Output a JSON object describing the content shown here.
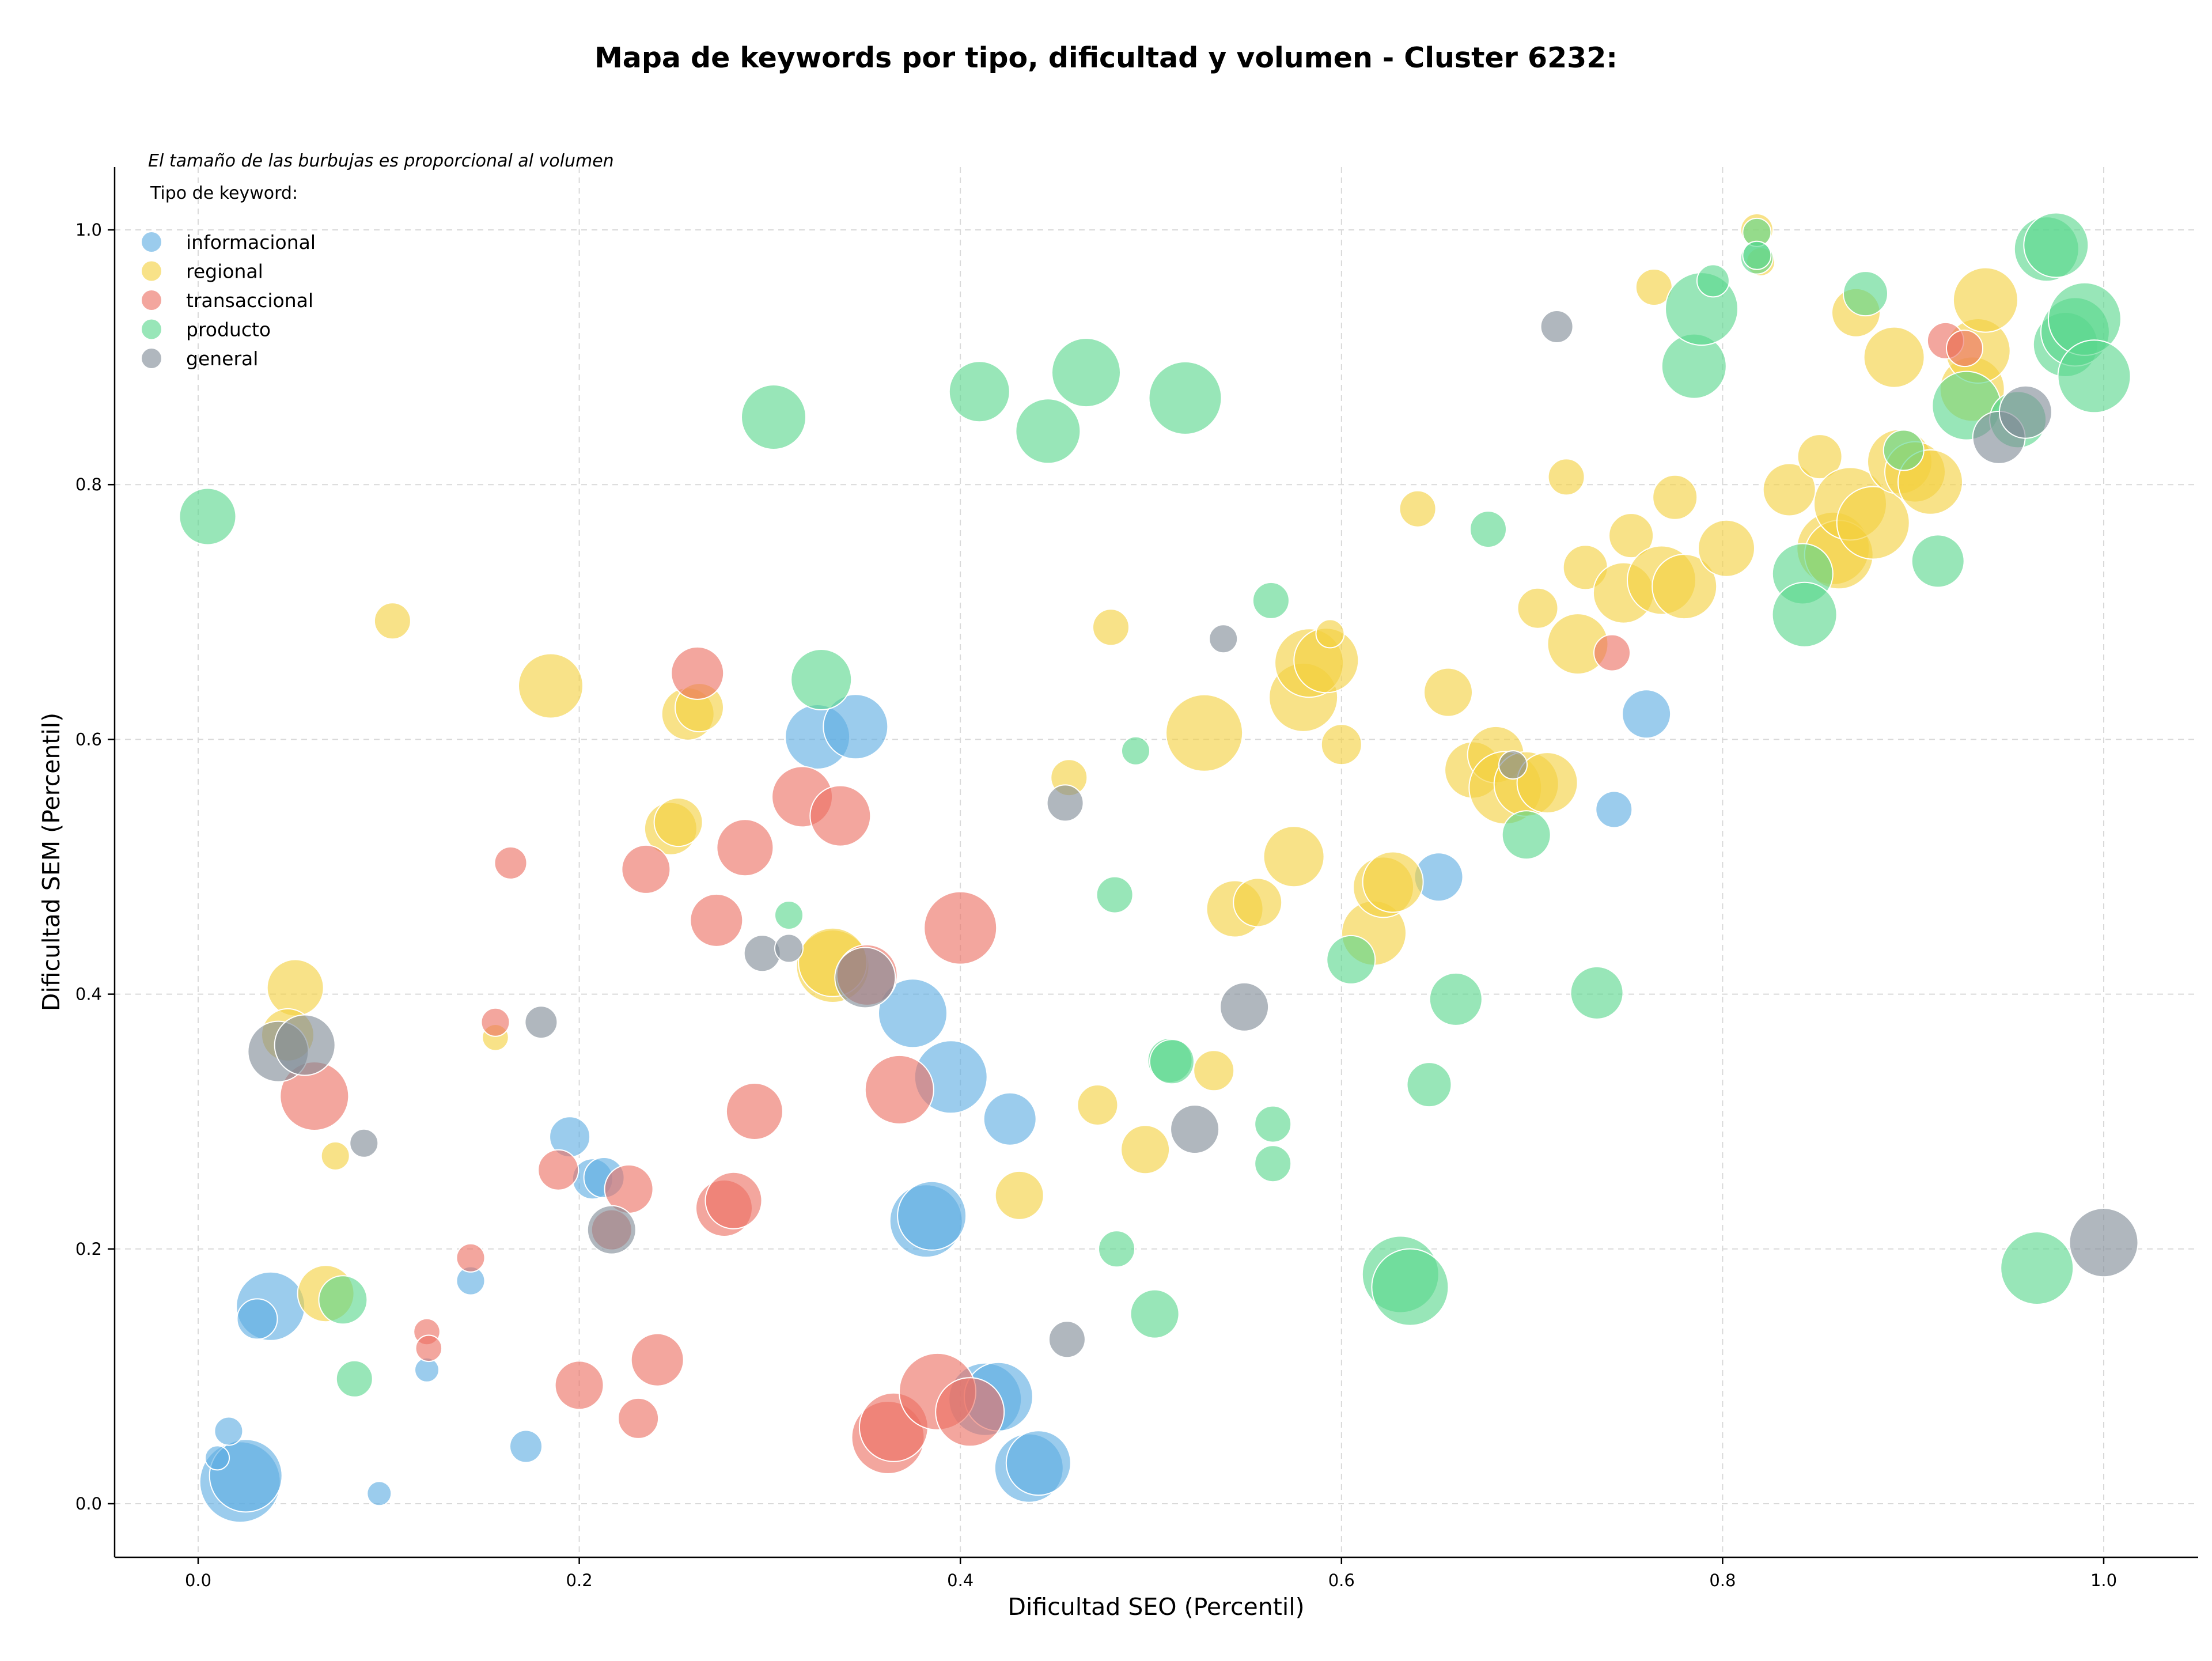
{
  "chart_data": {
    "type": "scatter",
    "title": "Mapa de keywords por tipo, dificultad y volumen - Cluster 6232:",
    "xlabel": "Dificultad SEO (Percentil)",
    "ylabel": "Dificultad SEM (Percentil)",
    "xlim": [
      -0.045,
      1.05
    ],
    "ylim": [
      -0.04,
      1.05
    ],
    "x_ticks": [
      "0.0",
      "0.2",
      "0.4",
      "0.6",
      "0.8",
      "1.0"
    ],
    "y_ticks": [
      "0.0",
      "0.2",
      "0.4",
      "0.6",
      "0.8",
      "1.0"
    ],
    "x_tick_values": [
      0,
      0.2,
      0.4,
      0.6,
      0.8,
      1.0
    ],
    "y_tick_values": [
      0,
      0.2,
      0.4,
      0.6,
      0.8,
      1.0
    ],
    "grid": true,
    "legend_placement": "top-left",
    "size_note": "El tamaño de las burbujas es proporcional al volumen",
    "legend_title": "Tipo de keyword:",
    "series": [
      {
        "name": "informacional",
        "color": "#5dade2",
        "points": [
          [
            0.022,
            0.017,
            4
          ],
          [
            0.025,
            0.022,
            3.6
          ],
          [
            0.038,
            0.155,
            3.4
          ],
          [
            0.031,
            0.145,
            2
          ],
          [
            0.016,
            0.057,
            1.4
          ],
          [
            0.01,
            0.036,
            1.2
          ],
          [
            0.095,
            0.008,
            1.2
          ],
          [
            0.12,
            0.105,
            1.2
          ],
          [
            0.143,
            0.175,
            1.4
          ],
          [
            0.172,
            0.045,
            1.6
          ],
          [
            0.195,
            0.288,
            2
          ],
          [
            0.207,
            0.255,
            2
          ],
          [
            0.213,
            0.256,
            2
          ],
          [
            0.325,
            0.602,
            3.2
          ],
          [
            0.345,
            0.61,
            3.2
          ],
          [
            0.375,
            0.385,
            3.4
          ],
          [
            0.395,
            0.335,
            3.6
          ],
          [
            0.382,
            0.222,
            3.6
          ],
          [
            0.385,
            0.226,
            3.4
          ],
          [
            0.426,
            0.302,
            2.6
          ],
          [
            0.413,
            0.082,
            3.6
          ],
          [
            0.42,
            0.084,
            3.4
          ],
          [
            0.436,
            0.028,
            3.4
          ],
          [
            0.441,
            0.032,
            3.2
          ],
          [
            0.651,
            0.492,
            2.4
          ],
          [
            0.743,
            0.545,
            1.8
          ],
          [
            0.76,
            0.62,
            2.4
          ]
        ]
      },
      {
        "name": "regional",
        "color": "#f4d03f",
        "points": [
          [
            0.051,
            0.405,
            2.8
          ],
          [
            0.047,
            0.368,
            2.6
          ],
          [
            0.067,
            0.165,
            2.8
          ],
          [
            0.072,
            0.273,
            1.4
          ],
          [
            0.102,
            0.693,
            1.8
          ],
          [
            0.156,
            0.366,
            1.3
          ],
          [
            0.185,
            0.642,
            3.2
          ],
          [
            0.248,
            0.53,
            2.6
          ],
          [
            0.252,
            0.535,
            2.4
          ],
          [
            0.257,
            0.62,
            2.6
          ],
          [
            0.263,
            0.625,
            2.4
          ],
          [
            0.333,
            0.422,
            3.6
          ],
          [
            0.333,
            0.425,
            3.4
          ],
          [
            0.431,
            0.242,
            2.4
          ],
          [
            0.457,
            0.57,
            1.8
          ],
          [
            0.472,
            0.313,
            2
          ],
          [
            0.479,
            0.688,
            1.8
          ],
          [
            0.497,
            0.278,
            2.4
          ],
          [
            0.528,
            0.605,
            3.8
          ],
          [
            0.533,
            0.34,
            2
          ],
          [
            0.544,
            0.467,
            2.8
          ],
          [
            0.556,
            0.472,
            2.4
          ],
          [
            0.575,
            0.508,
            3
          ],
          [
            0.58,
            0.633,
            3.4
          ],
          [
            0.583,
            0.66,
            3.4
          ],
          [
            0.592,
            0.662,
            3.2
          ],
          [
            0.594,
            0.683,
            1.4
          ],
          [
            0.6,
            0.596,
            2
          ],
          [
            0.617,
            0.448,
            3.2
          ],
          [
            0.622,
            0.484,
            3
          ],
          [
            0.627,
            0.488,
            3
          ],
          [
            0.64,
            0.781,
            1.8
          ],
          [
            0.656,
            0.637,
            2.4
          ],
          [
            0.669,
            0.576,
            2.8
          ],
          [
            0.681,
            0.588,
            2.8
          ],
          [
            0.686,
            0.562,
            3.6
          ],
          [
            0.697,
            0.565,
            3.2
          ],
          [
            0.703,
            0.703,
            2
          ],
          [
            0.708,
            0.566,
            3
          ],
          [
            0.718,
            0.806,
            1.8
          ],
          [
            0.724,
            0.675,
            3
          ],
          [
            0.728,
            0.735,
            2.2
          ],
          [
            0.748,
            0.715,
            3
          ],
          [
            0.752,
            0.76,
            2.2
          ],
          [
            0.764,
            0.955,
            1.8
          ],
          [
            0.768,
            0.725,
            3.4
          ],
          [
            0.775,
            0.79,
            2.2
          ],
          [
            0.78,
            0.72,
            3.2
          ],
          [
            0.802,
            0.75,
            2.8
          ],
          [
            0.818,
            1.0,
            1.6
          ],
          [
            0.82,
            0.975,
            1.4
          ],
          [
            0.835,
            0.796,
            2.6
          ],
          [
            0.851,
            0.822,
            2.2
          ],
          [
            0.858,
            0.75,
            3.6
          ],
          [
            0.861,
            0.745,
            3.4
          ],
          [
            0.867,
            0.785,
            3.6
          ],
          [
            0.87,
            0.935,
            2.4
          ],
          [
            0.879,
            0.77,
            3.6
          ],
          [
            0.89,
            0.9,
            3
          ],
          [
            0.893,
            0.818,
            3.2
          ],
          [
            0.901,
            0.81,
            3
          ],
          [
            0.909,
            0.802,
            3.2
          ],
          [
            0.931,
            0.875,
            3.2
          ],
          [
            0.934,
            0.905,
            3.2
          ],
          [
            0.938,
            0.945,
            3.2
          ]
        ]
      },
      {
        "name": "transaccional",
        "color": "#ec7063",
        "points": [
          [
            0.061,
            0.32,
            3.4
          ],
          [
            0.12,
            0.135,
            1.3
          ],
          [
            0.121,
            0.122,
            1.3
          ],
          [
            0.143,
            0.193,
            1.4
          ],
          [
            0.156,
            0.378,
            1.4
          ],
          [
            0.164,
            0.503,
            1.6
          ],
          [
            0.189,
            0.262,
            2
          ],
          [
            0.2,
            0.093,
            2.4
          ],
          [
            0.217,
            0.215,
            2
          ],
          [
            0.226,
            0.247,
            2.4
          ],
          [
            0.231,
            0.067,
            2
          ],
          [
            0.235,
            0.498,
            2.4
          ],
          [
            0.241,
            0.113,
            2.6
          ],
          [
            0.262,
            0.652,
            2.6
          ],
          [
            0.272,
            0.458,
            2.6
          ],
          [
            0.276,
            0.232,
            2.8
          ],
          [
            0.281,
            0.238,
            2.8
          ],
          [
            0.287,
            0.515,
            2.8
          ],
          [
            0.292,
            0.308,
            2.8
          ],
          [
            0.317,
            0.555,
            3
          ],
          [
            0.337,
            0.54,
            3
          ],
          [
            0.351,
            0.415,
            3
          ],
          [
            0.362,
            0.052,
            3.6
          ],
          [
            0.365,
            0.06,
            3.4
          ],
          [
            0.368,
            0.325,
            3.4
          ],
          [
            0.388,
            0.088,
            3.8
          ],
          [
            0.4,
            0.452,
            3.6
          ],
          [
            0.405,
            0.072,
            3.4
          ],
          [
            0.742,
            0.668,
            1.8
          ],
          [
            0.917,
            0.913,
            1.8
          ],
          [
            0.927,
            0.907,
            1.8
          ]
        ]
      },
      {
        "name": "producto",
        "color": "#58d68d",
        "points": [
          [
            0.005,
            0.775,
            2.8
          ],
          [
            0.076,
            0.16,
            2.4
          ],
          [
            0.082,
            0.098,
            1.8
          ],
          [
            0.302,
            0.853,
            3.2
          ],
          [
            0.31,
            0.462,
            1.4
          ],
          [
            0.327,
            0.647,
            3
          ],
          [
            0.41,
            0.873,
            3
          ],
          [
            0.446,
            0.842,
            3.2
          ],
          [
            0.466,
            0.888,
            3.4
          ],
          [
            0.481,
            0.478,
            1.8
          ],
          [
            0.482,
            0.2,
            1.8
          ],
          [
            0.492,
            0.591,
            1.4
          ],
          [
            0.502,
            0.149,
            2.4
          ],
          [
            0.51,
            0.348,
            2.2
          ],
          [
            0.511,
            0.347,
            2.2
          ],
          [
            0.518,
            0.868,
            3.6
          ],
          [
            0.563,
            0.709,
            1.8
          ],
          [
            0.564,
            0.298,
            1.8
          ],
          [
            0.564,
            0.267,
            1.8
          ],
          [
            0.605,
            0.427,
            2.4
          ],
          [
            0.631,
            0.18,
            3.8
          ],
          [
            0.636,
            0.17,
            3.8
          ],
          [
            0.646,
            0.329,
            2.2
          ],
          [
            0.66,
            0.396,
            2.6
          ],
          [
            0.677,
            0.765,
            1.8
          ],
          [
            0.697,
            0.525,
            2.4
          ],
          [
            0.734,
            0.401,
            2.6
          ],
          [
            0.785,
            0.893,
            3.2
          ],
          [
            0.789,
            0.938,
            3.6
          ],
          [
            0.795,
            0.96,
            1.6
          ],
          [
            0.818,
            0.978,
            1.6
          ],
          [
            0.818,
            0.998,
            1.4
          ],
          [
            0.818,
            0.98,
            1.4
          ],
          [
            0.842,
            0.73,
            3
          ],
          [
            0.843,
            0.698,
            3.2
          ],
          [
            0.875,
            0.95,
            2.2
          ],
          [
            0.895,
            0.827,
            2
          ],
          [
            0.913,
            0.74,
            2.6
          ],
          [
            0.928,
            0.862,
            3.4
          ],
          [
            0.955,
            0.851,
            2.8
          ],
          [
            0.965,
            0.185,
            3.6
          ],
          [
            0.97,
            0.985,
            3.2
          ],
          [
            0.975,
            0.988,
            3.2
          ],
          [
            0.98,
            0.91,
            3.2
          ],
          [
            0.985,
            0.92,
            3.4
          ],
          [
            0.99,
            0.93,
            3.6
          ],
          [
            0.995,
            0.885,
            3.6
          ]
        ]
      },
      {
        "name": "general",
        "color": "#808b96",
        "points": [
          [
            0.042,
            0.355,
            3
          ],
          [
            0.056,
            0.36,
            3
          ],
          [
            0.087,
            0.283,
            1.4
          ],
          [
            0.18,
            0.378,
            1.6
          ],
          [
            0.217,
            0.215,
            2.4
          ],
          [
            0.296,
            0.432,
            1.8
          ],
          [
            0.31,
            0.436,
            1.4
          ],
          [
            0.35,
            0.413,
            3
          ],
          [
            0.455,
            0.55,
            1.8
          ],
          [
            0.456,
            0.129,
            1.8
          ],
          [
            0.523,
            0.294,
            2.4
          ],
          [
            0.538,
            0.679,
            1.4
          ],
          [
            0.549,
            0.39,
            2.4
          ],
          [
            0.69,
            0.58,
            1.4
          ],
          [
            0.713,
            0.924,
            1.6
          ],
          [
            0.945,
            0.837,
            2.6
          ],
          [
            0.959,
            0.857,
            2.6
          ],
          [
            1.0,
            0.205,
            3.4
          ]
        ]
      }
    ]
  }
}
